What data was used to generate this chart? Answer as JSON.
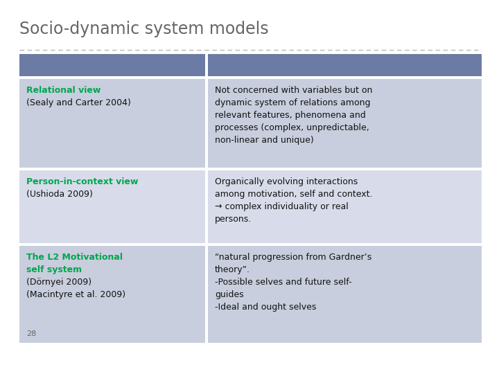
{
  "title": "Socio-dynamic system models",
  "title_fontsize": 17,
  "title_color": "#666666",
  "background_color": "#ffffff",
  "header_color": "#6B7BA4",
  "green_color": "#00A550",
  "text_color": "#111111",
  "rows": [
    {
      "left_bold": "Relational view",
      "left_normal": "(Sealy and Carter 2004)",
      "right": "Not concerned with variables but on\ndynamic system of relations among\nrelevant features, phenomena and\nprocesses (complex, unpredictable,\nnon-linear and unique)",
      "bg": "#C8CEDD"
    },
    {
      "left_bold": "Person-in-context view",
      "left_normal": "(Ushioda 2009)",
      "right": "Organically evolving interactions\namong motivation, self and context.\n→ complex individuality or real\npersons.",
      "bg": "#D8DCEA"
    },
    {
      "left_bold": "The L2 Motivational\nself system",
      "left_normal": "(Dörnyei 2009)\n(Macintyre et al. 2009)",
      "right": "“natural progression from Gardner’s\ntheory”.\n-Possible selves and future self-\nguides\n-Ideal and ought selves",
      "bg": "#C8CEDD"
    }
  ],
  "page_number": "28"
}
